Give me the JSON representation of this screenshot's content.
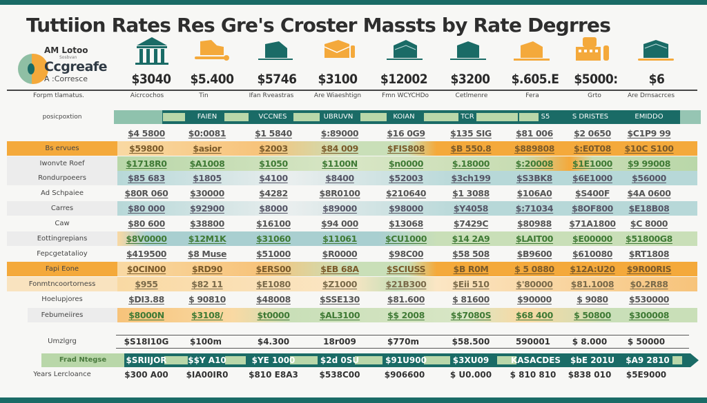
{
  "title": "Tuttiion Rates Res Gre's Croster Massts by Rate Degrres",
  "colors": {
    "teal": "#1a6b66",
    "orange": "#f4a93b",
    "light_orange": "#f9d9a3",
    "light_green": "#b9d7a9",
    "light_teal": "#b7d8d8",
    "light_gray": "#e7e7e7"
  },
  "logo": {
    "top": "AM Lotoo",
    "small": "Sosbvan",
    "main": "Ccgreafe",
    "sub": "A :Corresce"
  },
  "columns": [
    {
      "icon": "university-building-icon",
      "icon_color": "teal",
      "price": "$3040",
      "sub": "Aicrcochos",
      "header": ""
    },
    {
      "icon": "graduation-hat-icon",
      "icon_color": "orange",
      "price": "$5.400",
      "sub": "Tin",
      "header": "FAIEN"
    },
    {
      "icon": "graduation-cap-icon",
      "icon_color": "teal",
      "price": "$5746",
      "sub": "Ifan Rveastras",
      "header": "VCCNES"
    },
    {
      "icon": "diploma-envelope-icon",
      "icon_color": "orange",
      "price": "$3100",
      "sub": "Are Wiaeshtign",
      "header": "UBRUVN"
    },
    {
      "icon": "graduation-cap-icon",
      "icon_color": "teal",
      "price": "$12002",
      "sub": "Fmn WCYCHDo",
      "header": "KOIAN"
    },
    {
      "icon": "graduation-cap-icon",
      "icon_color": "teal",
      "price": "$3200",
      "sub": "Cetlmenre",
      "header": "TCR"
    },
    {
      "icon": "graduation-hat-icon",
      "icon_color": "orange",
      "price": "$.605.E",
      "sub": "Fera",
      "header": "S5"
    },
    {
      "icon": "campus-buildings-icon",
      "icon_color": "orange",
      "price": "$5000:",
      "sub": "Grto",
      "header": "S DRISTES"
    },
    {
      "icon": "graduation-cap-icon",
      "icon_color": "teal",
      "price": "$6",
      "sub": "Are Drnsacrces",
      "header": "EMIDDO"
    }
  ],
  "sub_header_label": "Forpm tlamatus.",
  "band_header_label": "posicpoxtion",
  "rows": [
    {
      "label": "",
      "bg": "none",
      "values": [
        "$4 5800",
        "$0:0081",
        "$1 5840",
        "$:89000",
        "$16 0G9",
        "$135 SIG",
        "$81 006",
        "$2 0650",
        "$C1P9 99"
      ]
    },
    {
      "label": "Bs ervues",
      "bg": "orange",
      "values": [
        "$59800",
        "$asior",
        "$2003",
        "$84 009",
        "$FIS808",
        "$B 550.8",
        "$889808",
        "$:E0T08",
        "$10C S100"
      ]
    },
    {
      "label": "Iwonvte Roef",
      "bg": "green",
      "values": [
        "$1718R0",
        "$A1008",
        "$1050",
        "$1100N",
        "$n0000",
        "$.18000",
        "$:20008",
        "$1E1000",
        "$9 99008"
      ]
    },
    {
      "label": "Rondurpoeers",
      "bg": "teal",
      "values": [
        "$85 683",
        "$1805",
        "$4100",
        "$8400",
        "$52003",
        "$3ch199",
        "$S3BK8",
        "$6E1000",
        "$56000"
      ]
    },
    {
      "label": "Ad Schpaiee",
      "bg": "none",
      "values": [
        "$80R 060",
        "$30000",
        "$4282",
        "$8R0100",
        "$210640",
        "$1 3088",
        "$106A0",
        "$S400F",
        "$4A 0600"
      ]
    },
    {
      "label": "Carres",
      "bg": "teal",
      "values": [
        "$80 000",
        "$92900",
        "$8000",
        "$89000",
        "$98000",
        "$Y4058",
        "$:71034",
        "$8OF800",
        "$E18B08"
      ]
    },
    {
      "label": "Caw",
      "bg": "none",
      "values": [
        "$80 600",
        "$38800",
        "$16100",
        "$94 000",
        "$13068",
        "$7429C",
        "$80988",
        "$71A1800",
        "$C 8000"
      ]
    },
    {
      "label": "Eottingrepians",
      "bg": "teal2",
      "values": [
        "$8V0000",
        "$12M1K",
        "$31060",
        "$11061",
        "$CU1000",
        "$14 2A9",
        "$LAIT00",
        "$E00000",
        "$51800G8"
      ]
    },
    {
      "label": "Fepcgetatalioy",
      "bg": "none",
      "values": [
        "$419500",
        "$8 Muse",
        "$51000",
        "$R0000",
        "$98C00",
        "$58 508",
        "$B9600",
        "$610080",
        "$RT1808"
      ]
    },
    {
      "label": "Fapi Eone",
      "bg": "orange",
      "values": [
        "$0CIN00",
        "$RD90",
        "$ERS00",
        "$EB 68A",
        "$SCIUSS",
        "$B R0M",
        "$ 5 0880",
        "$12A:U20",
        "$9R00RIS"
      ]
    },
    {
      "label": "Fonmtncoortorness",
      "bg": "lightorange",
      "values": [
        "$955",
        "$82 11",
        "$E1080",
        "$Z1000",
        "$21B300",
        "$Eii 510",
        "$'80000",
        "$81.1008",
        "$0.2R88"
      ]
    },
    {
      "label": "Hoelupjores",
      "bg": "none",
      "values": [
        "$DI3.88",
        "$ 90810",
        "$48008",
        "$SSE130",
        "$81.600",
        "$ 81600",
        "$90000",
        "$ 9080",
        "$530000"
      ]
    },
    {
      "label": "Febumeiires",
      "bg": "mix",
      "values": [
        "$8000N",
        "$3108/",
        "$t0000",
        "$AL3100",
        "$$ 2008",
        "$$7080S",
        "$68 400",
        "$ 50800",
        "$300008"
      ]
    }
  ],
  "summary": {
    "label": "Umzlgrg",
    "values": [
      "$S18I10G",
      "$100m",
      "$4.300",
      "18r009",
      "$770m",
      "$58.500",
      "590001",
      "$ 8.000",
      "$ 50000"
    ]
  },
  "footer": {
    "label": "Frad Ntegse",
    "values": [
      "$SRIIJOR",
      "$$Y A10",
      "$YE 1000",
      "$2d 0SU",
      "$91U900",
      "$3XU09",
      "KASACDES",
      "$bE 201U",
      "$A9 2810"
    ]
  },
  "years": {
    "label": "Years Lercloance",
    "values": [
      "$300 A00",
      "$IA00IR0",
      "$810 E8A3",
      "$538C00",
      "$906600",
      "$ U0.000",
      "$ 810 810",
      "$838 010",
      "$5E9000"
    ]
  }
}
